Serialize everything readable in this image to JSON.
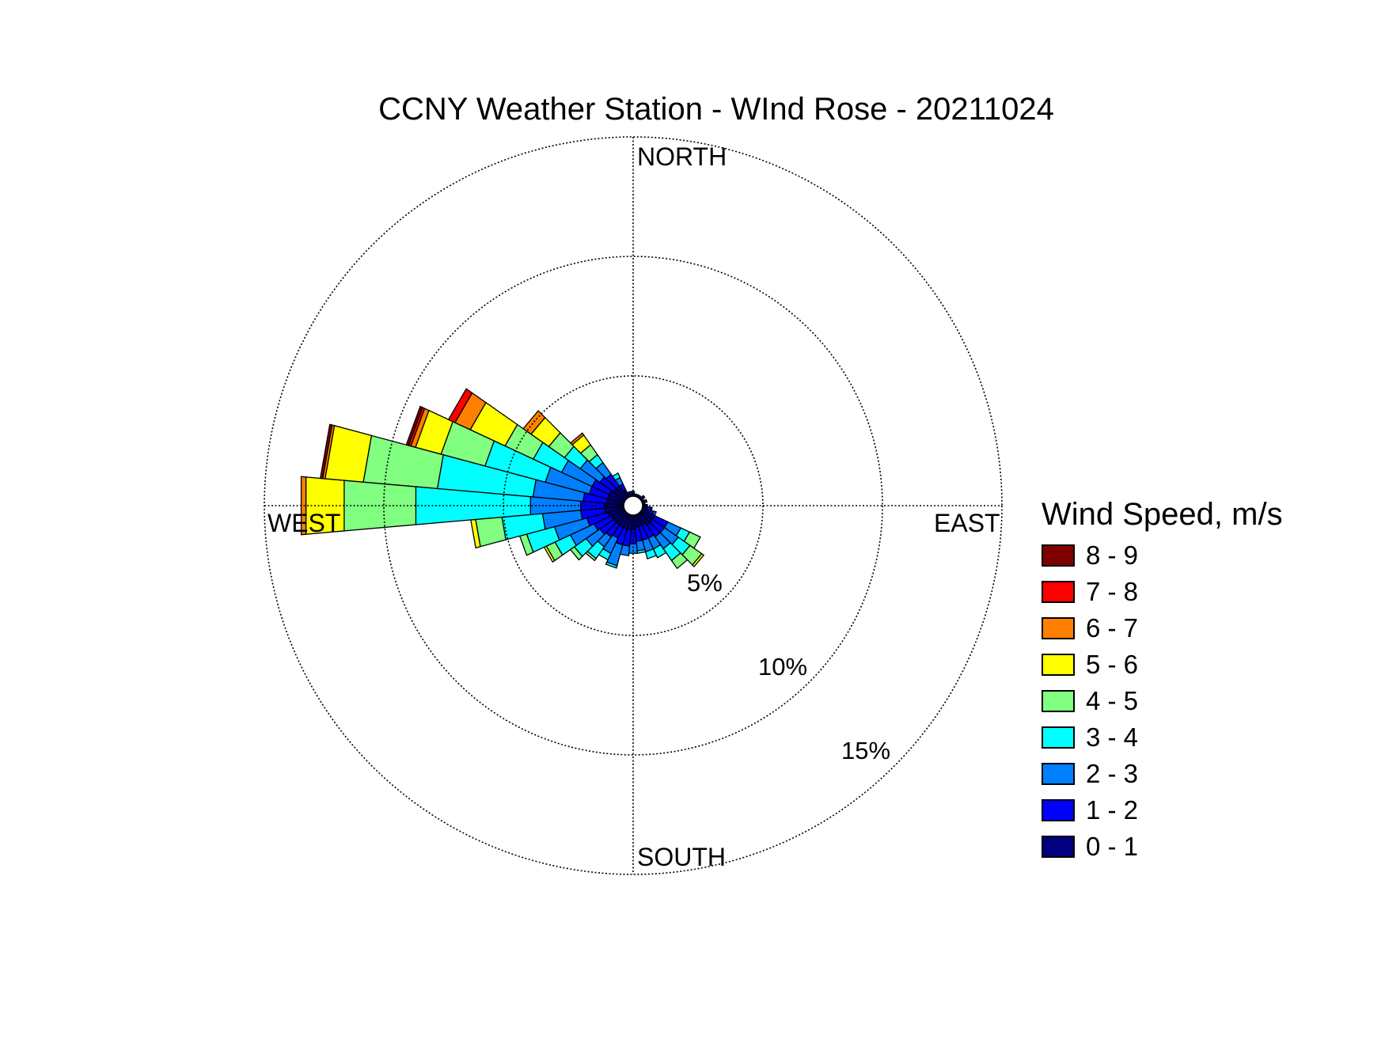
{
  "chart_data": {
    "type": "polar-bar (wind rose)",
    "title": "CCNY Weather Station - WInd Rose - 20211024",
    "compass_labels": {
      "north": "NORTH",
      "south": "SOUTH",
      "east": "EAST",
      "west": "WEST"
    },
    "radial_ticks": [
      5,
      10,
      15
    ],
    "radial_tick_labels": [
      "5%",
      "10%",
      "15%"
    ],
    "radial_max": 15,
    "grid": true,
    "direction_unit": "degrees (meteorological, clockwise from north)",
    "legend": {
      "title": "Wind Speed, m/s",
      "placement": "right",
      "items": [
        {
          "label": "8 - 9",
          "color": "#800000"
        },
        {
          "label": "7 - 8",
          "color": "#ff0000"
        },
        {
          "label": "6 - 7",
          "color": "#ff8000"
        },
        {
          "label": "5 - 6",
          "color": "#ffff00"
        },
        {
          "label": "4 - 5",
          "color": "#80ff80"
        },
        {
          "label": "3 - 4",
          "color": "#00ffff"
        },
        {
          "label": "2 - 3",
          "color": "#0080ff"
        },
        {
          "label": "1 - 2",
          "color": "#0000ff"
        },
        {
          "label": "0 - 1",
          "color": "#000080"
        }
      ]
    },
    "speed_bins": [
      "0 - 1",
      "1 - 2",
      "2 - 3",
      "3 - 4",
      "4 - 5",
      "5 - 6",
      "6 - 7",
      "7 - 8",
      "8 - 9"
    ],
    "bin_colors": [
      "#000080",
      "#0000ff",
      "#0080ff",
      "#00ffff",
      "#80ff80",
      "#ffff00",
      "#ff8000",
      "#ff0000",
      "#800000"
    ],
    "directions": [
      {
        "dir": 0,
        "pct": [
          0.1,
          0.1,
          0,
          0,
          0,
          0,
          0,
          0,
          0
        ]
      },
      {
        "dir": 10,
        "pct": [
          0.1,
          0,
          0,
          0,
          0,
          0,
          0,
          0,
          0
        ]
      },
      {
        "dir": 20,
        "pct": [
          0.1,
          0,
          0,
          0,
          0,
          0,
          0,
          0,
          0
        ]
      },
      {
        "dir": 30,
        "pct": [
          0.1,
          0,
          0,
          0,
          0,
          0,
          0,
          0,
          0
        ]
      },
      {
        "dir": 40,
        "pct": [
          0.1,
          0,
          0,
          0,
          0,
          0,
          0,
          0,
          0
        ]
      },
      {
        "dir": 50,
        "pct": [
          0.1,
          0.1,
          0,
          0,
          0,
          0,
          0,
          0,
          0
        ]
      },
      {
        "dir": 60,
        "pct": [
          0.1,
          0,
          0,
          0,
          0,
          0,
          0,
          0,
          0
        ]
      },
      {
        "dir": 70,
        "pct": [
          0.1,
          0.1,
          0,
          0,
          0,
          0,
          0,
          0,
          0
        ]
      },
      {
        "dir": 80,
        "pct": [
          0.1,
          0,
          0,
          0,
          0,
          0,
          0,
          0,
          0
        ]
      },
      {
        "dir": 90,
        "pct": [
          0.1,
          0.1,
          0,
          0,
          0,
          0,
          0,
          0,
          0
        ]
      },
      {
        "dir": 100,
        "pct": [
          0.2,
          0.2,
          0,
          0,
          0,
          0,
          0,
          0,
          0
        ]
      },
      {
        "dir": 110,
        "pct": [
          0.3,
          0.2,
          0.1,
          0,
          0,
          0,
          0,
          0,
          0
        ]
      },
      {
        "dir": 120,
        "pct": [
          0.6,
          0.6,
          0.6,
          0.4,
          0.5,
          0,
          0,
          0,
          0
        ]
      },
      {
        "dir": 130,
        "pct": [
          0.6,
          0.6,
          0.7,
          0.6,
          0.6,
          0.1,
          0,
          0,
          0
        ]
      },
      {
        "dir": 140,
        "pct": [
          0.6,
          0.6,
          0.6,
          0.6,
          0.4,
          0,
          0,
          0,
          0
        ]
      },
      {
        "dir": 150,
        "pct": [
          0.5,
          0.6,
          0.5,
          0.4,
          0,
          0,
          0,
          0,
          0
        ]
      },
      {
        "dir": 160,
        "pct": [
          0.5,
          0.6,
          0.5,
          0.3,
          0,
          0,
          0,
          0,
          0
        ]
      },
      {
        "dir": 170,
        "pct": [
          0.5,
          0.6,
          0.4,
          0.1,
          0,
          0,
          0,
          0,
          0
        ]
      },
      {
        "dir": 180,
        "pct": [
          0.6,
          0.6,
          0.4,
          0,
          0,
          0,
          0,
          0,
          0
        ]
      },
      {
        "dir": 190,
        "pct": [
          0.6,
          0.7,
          0.4,
          0,
          0,
          0,
          0,
          0,
          0
        ]
      },
      {
        "dir": 200,
        "pct": [
          0.6,
          0.7,
          0.9,
          0.1,
          0,
          0,
          0,
          0,
          0
        ]
      },
      {
        "dir": 210,
        "pct": [
          0.6,
          0.5,
          0.7,
          0.3,
          0,
          0,
          0,
          0,
          0
        ]
      },
      {
        "dir": 220,
        "pct": [
          0.6,
          0.6,
          0.5,
          0.6,
          0.1,
          0,
          0,
          0,
          0
        ]
      },
      {
        "dir": 230,
        "pct": [
          0.6,
          0.7,
          0.7,
          0.6,
          0.2,
          0,
          0,
          0,
          0
        ]
      },
      {
        "dir": 240,
        "pct": [
          0.6,
          0.8,
          1.1,
          0.7,
          0.4,
          0.1,
          0,
          0,
          0
        ]
      },
      {
        "dir": 250,
        "pct": [
          0.7,
          0.9,
          1.4,
          1.2,
          0.3,
          0,
          0,
          0,
          0
        ]
      },
      {
        "dir": 260,
        "pct": [
          0.8,
          1.0,
          1.6,
          1.7,
          1.1,
          0.2,
          0,
          0,
          0
        ]
      },
      {
        "dir": 270,
        "pct": [
          0.8,
          1.0,
          2.1,
          4.8,
          3.0,
          1.6,
          0.2,
          0,
          0
        ]
      },
      {
        "dir": 280,
        "pct": [
          0.7,
          1.0,
          2.1,
          4.0,
          3.1,
          1.6,
          0.1,
          0,
          0.1
        ]
      },
      {
        "dir": 290,
        "pct": [
          0.7,
          0.8,
          1.9,
          2.6,
          1.9,
          1.1,
          0.2,
          0.1,
          0.1
        ]
      },
      {
        "dir": 300,
        "pct": [
          0.7,
          0.8,
          1.4,
          1.3,
          1.3,
          1.6,
          0.7,
          0.3,
          0
        ]
      },
      {
        "dir": 310,
        "pct": [
          0.6,
          0.7,
          1.0,
          0.8,
          0.8,
          0.9,
          0.4,
          0,
          0
        ]
      },
      {
        "dir": 320,
        "pct": [
          0.6,
          0.6,
          0.6,
          0.4,
          0.5,
          0.5,
          0.1,
          0,
          0
        ]
      },
      {
        "dir": 330,
        "pct": [
          0.3,
          0.3,
          0.3,
          0.2,
          0,
          0,
          0,
          0,
          0
        ]
      },
      {
        "dir": 340,
        "pct": [
          0.1,
          0.1,
          0,
          0,
          0,
          0,
          0,
          0,
          0
        ]
      },
      {
        "dir": 350,
        "pct": [
          0.1,
          0.1,
          0,
          0,
          0,
          0,
          0,
          0,
          0
        ]
      }
    ]
  }
}
